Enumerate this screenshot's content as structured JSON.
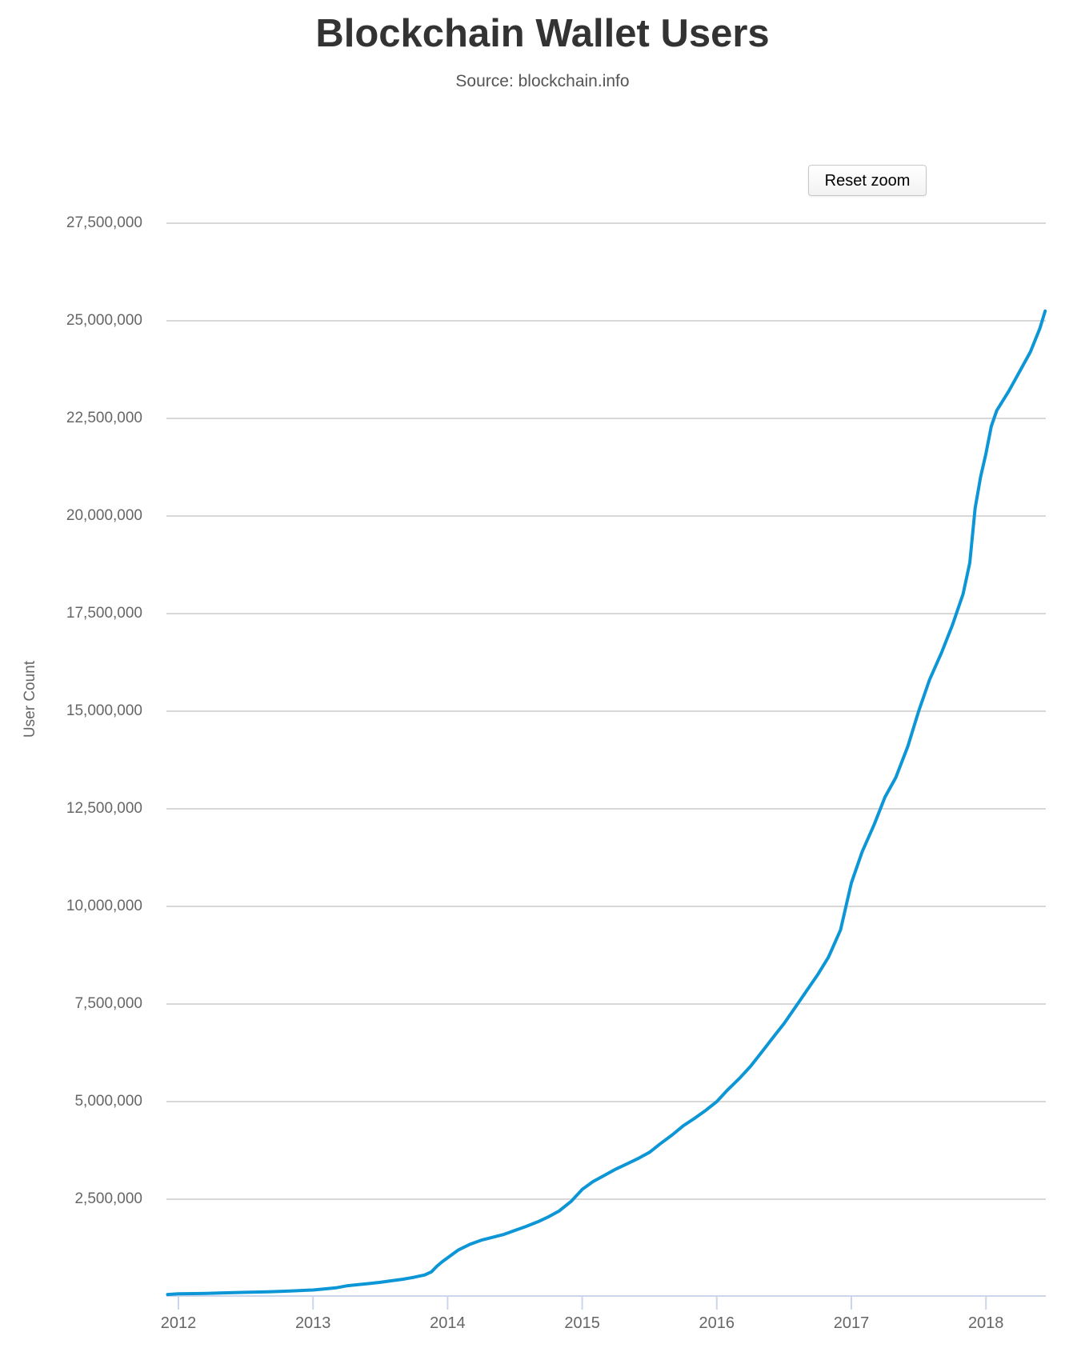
{
  "chart": {
    "title": "Blockchain Wallet Users",
    "subtitle": "Source: blockchain.info",
    "reset_zoom_label": "Reset zoom",
    "y_axis_title": "User Count"
  },
  "chart_data": {
    "type": "line",
    "title": "Blockchain Wallet Users",
    "subtitle": "Source: blockchain.info",
    "xlabel": "",
    "ylabel": "User Count",
    "xlim": [
      2011.92,
      2018.45
    ],
    "ylim": [
      0,
      28100000
    ],
    "grid": "horizontal",
    "legend": "none",
    "series": [
      {
        "name": "User Count",
        "color": "#0d96d6",
        "points": [
          [
            2011.92,
            60000
          ],
          [
            2012.0,
            75000
          ],
          [
            2012.17,
            85000
          ],
          [
            2012.33,
            100000
          ],
          [
            2012.5,
            115000
          ],
          [
            2012.67,
            130000
          ],
          [
            2012.83,
            150000
          ],
          [
            2013.0,
            175000
          ],
          [
            2013.08,
            200000
          ],
          [
            2013.17,
            230000
          ],
          [
            2013.25,
            280000
          ],
          [
            2013.33,
            310000
          ],
          [
            2013.42,
            340000
          ],
          [
            2013.5,
            370000
          ],
          [
            2013.58,
            410000
          ],
          [
            2013.67,
            450000
          ],
          [
            2013.75,
            500000
          ],
          [
            2013.83,
            560000
          ],
          [
            2013.88,
            640000
          ],
          [
            2013.92,
            780000
          ],
          [
            2013.96,
            900000
          ],
          [
            2014.0,
            1000000
          ],
          [
            2014.08,
            1200000
          ],
          [
            2014.17,
            1350000
          ],
          [
            2014.25,
            1450000
          ],
          [
            2014.33,
            1520000
          ],
          [
            2014.42,
            1600000
          ],
          [
            2014.5,
            1700000
          ],
          [
            2014.58,
            1800000
          ],
          [
            2014.67,
            1920000
          ],
          [
            2014.75,
            2050000
          ],
          [
            2014.83,
            2200000
          ],
          [
            2014.92,
            2450000
          ],
          [
            2015.0,
            2750000
          ],
          [
            2015.08,
            2950000
          ],
          [
            2015.17,
            3120000
          ],
          [
            2015.25,
            3270000
          ],
          [
            2015.33,
            3400000
          ],
          [
            2015.42,
            3550000
          ],
          [
            2015.5,
            3700000
          ],
          [
            2015.58,
            3920000
          ],
          [
            2015.67,
            4150000
          ],
          [
            2015.75,
            4380000
          ],
          [
            2015.83,
            4560000
          ],
          [
            2015.92,
            4780000
          ],
          [
            2016.0,
            5000000
          ],
          [
            2016.08,
            5300000
          ],
          [
            2016.17,
            5600000
          ],
          [
            2016.25,
            5900000
          ],
          [
            2016.33,
            6250000
          ],
          [
            2016.42,
            6650000
          ],
          [
            2016.5,
            7000000
          ],
          [
            2016.58,
            7400000
          ],
          [
            2016.67,
            7850000
          ],
          [
            2016.75,
            8250000
          ],
          [
            2016.83,
            8700000
          ],
          [
            2016.92,
            9400000
          ],
          [
            2017.0,
            10600000
          ],
          [
            2017.08,
            11400000
          ],
          [
            2017.17,
            12100000
          ],
          [
            2017.25,
            12800000
          ],
          [
            2017.33,
            13300000
          ],
          [
            2017.42,
            14100000
          ],
          [
            2017.5,
            15000000
          ],
          [
            2017.58,
            15800000
          ],
          [
            2017.67,
            16500000
          ],
          [
            2017.75,
            17200000
          ],
          [
            2017.83,
            18000000
          ],
          [
            2017.88,
            18800000
          ],
          [
            2017.92,
            20200000
          ],
          [
            2017.96,
            21000000
          ],
          [
            2018.0,
            21600000
          ],
          [
            2018.04,
            22300000
          ],
          [
            2018.08,
            22700000
          ],
          [
            2018.17,
            23200000
          ],
          [
            2018.25,
            23700000
          ],
          [
            2018.33,
            24200000
          ],
          [
            2018.4,
            24800000
          ],
          [
            2018.44,
            25250000
          ]
        ]
      }
    ],
    "y_ticks": [
      {
        "value": 2500000,
        "label": "2,500,000"
      },
      {
        "value": 5000000,
        "label": "5,000,000"
      },
      {
        "value": 7500000,
        "label": "7,500,000"
      },
      {
        "value": 10000000,
        "label": "10,000,000"
      },
      {
        "value": 12500000,
        "label": "12,500,000"
      },
      {
        "value": 15000000,
        "label": "15,000,000"
      },
      {
        "value": 17500000,
        "label": "17,500,000"
      },
      {
        "value": 20000000,
        "label": "20,000,000"
      },
      {
        "value": 22500000,
        "label": "22,500,000"
      },
      {
        "value": 25000000,
        "label": "25,000,000"
      },
      {
        "value": 27500000,
        "label": "27,500,000"
      }
    ],
    "x_ticks": [
      {
        "value": 2012,
        "label": "2012"
      },
      {
        "value": 2013,
        "label": "2013"
      },
      {
        "value": 2014,
        "label": "2014"
      },
      {
        "value": 2015,
        "label": "2015"
      },
      {
        "value": 2016,
        "label": "2016"
      },
      {
        "value": 2017,
        "label": "2017"
      },
      {
        "value": 2018,
        "label": "2018"
      }
    ]
  }
}
